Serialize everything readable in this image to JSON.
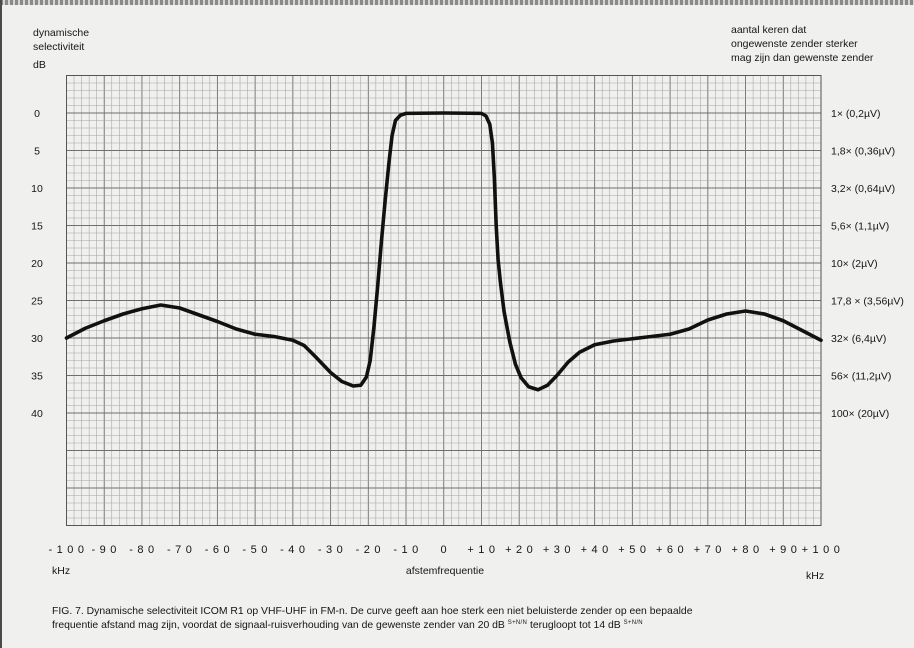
{
  "chart_data": {
    "type": "line",
    "ylabel_lines": [
      "dynamische",
      "selectiviteit"
    ],
    "y_unit": "dB",
    "y2label_lines": [
      "aantal keren dat",
      "ongewenste zender sterker",
      "mag zijn dan gewenste zender"
    ],
    "xlabel": "afstemfrequentie",
    "x_unit_left": "kHz",
    "x_unit_right": "kHz",
    "xlim": [
      -100,
      100
    ],
    "ylim": [
      -5,
      55
    ],
    "y_axis_inverted": true,
    "grid": true,
    "x_ticks": [
      -100,
      -90,
      -80,
      -70,
      -60,
      -50,
      -40,
      -30,
      -20,
      -10,
      0,
      10,
      20,
      30,
      40,
      50,
      60,
      70,
      80,
      90,
      100
    ],
    "x_tick_labels": [
      "-100",
      "-90",
      "-80",
      "-70",
      "-60",
      "-50",
      "-40",
      "-30",
      "-20",
      "-10",
      "0",
      "+10",
      "+20",
      "+30",
      "+40",
      "+50",
      "+60",
      "+70",
      "+80",
      "+90",
      "+100"
    ],
    "y_ticks": [
      0,
      5,
      10,
      15,
      20,
      25,
      30,
      35,
      40
    ],
    "y_tick_labels": [
      "0",
      "5",
      "10",
      "15",
      "20",
      "25",
      "30",
      "35",
      "40"
    ],
    "y2_tick_labels": [
      "1× (0,2µV)",
      "1,8× (0,36µV)",
      "3,2× (0,64µV)",
      "5,6× (1,1µV)",
      "10× (2µV)",
      "17,8 × (3,56µV)",
      "32× (6,4µV)",
      "56× (11,2µV)",
      "100× (20µV)"
    ],
    "series": [
      {
        "x": [
          -100,
          -95,
          -90,
          -85,
          -80,
          -75,
          -70,
          -65,
          -60,
          -55,
          -50,
          -45,
          -40,
          -37,
          -34,
          -30,
          -27,
          -24,
          -22,
          -20.5,
          -19.5,
          -18.5,
          -17.5,
          -16.5,
          -15.5,
          -14.5,
          -13.7,
          -12.8,
          -11.5,
          -10,
          0,
          10,
          11.2,
          12.2,
          12.9,
          13.4,
          13.9,
          14.4,
          15,
          16,
          17.5,
          19,
          20.5,
          22.5,
          25,
          27.5,
          30,
          33,
          36,
          40,
          45,
          50,
          55,
          60,
          65,
          70,
          75,
          80,
          85,
          90,
          95,
          100
        ],
        "y": [
          30.0,
          28.7,
          27.7,
          26.8,
          26.1,
          25.6,
          26.0,
          26.9,
          27.8,
          28.8,
          29.5,
          29.8,
          30.3,
          31.0,
          32.5,
          34.6,
          35.8,
          36.4,
          36.3,
          35.2,
          33.0,
          28.5,
          23.0,
          17.0,
          11.5,
          6.5,
          3.0,
          1.0,
          0.3,
          0.05,
          0,
          0.05,
          0.4,
          1.5,
          4.0,
          8.5,
          15.0,
          19.5,
          22.5,
          26.5,
          30.5,
          33.5,
          35.3,
          36.5,
          36.9,
          36.3,
          35.0,
          33.2,
          31.9,
          30.9,
          30.4,
          30.1,
          29.8,
          29.5,
          28.8,
          27.6,
          26.8,
          26.4,
          26.8,
          27.7,
          29.0,
          30.3
        ]
      }
    ]
  },
  "caption": {
    "line1": "FIG. 7. Dynamische selectiviteit ICOM R1 op VHF-UHF in FM-n. De curve geeft aan hoe sterk een niet beluisterde zender op een bepaalde",
    "line2_a": "frequentie afstand mag zijn, voordat de signaal-ruisverhouding van de gewenste zender van 20 dB",
    "line2_sup1": "S+N/N",
    "line2_b": "terugloopt tot 14 dB",
    "line2_sup2": "S+N/N"
  },
  "colors": {
    "background": "#f0f0ee",
    "grid_minor": "#a3a3a3",
    "grid_major": "#6e6e6e",
    "frame": "#555555",
    "curve": "#111111"
  }
}
